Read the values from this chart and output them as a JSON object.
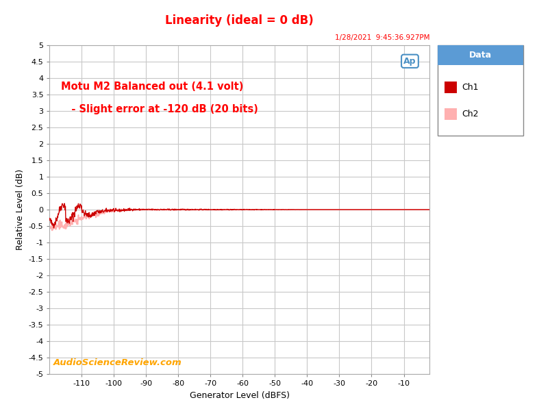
{
  "title": "Linearity (ideal = 0 dB)",
  "title_color": "#FF0000",
  "xlabel": "Generator Level (dBFS)",
  "ylabel": "Relative Level (dB)",
  "xlim": [
    -120,
    -2
  ],
  "ylim": [
    -5.0,
    5.0
  ],
  "yticks": [
    -5.0,
    -4.5,
    -4.0,
    -3.5,
    -3.0,
    -2.5,
    -2.0,
    -1.5,
    -1.0,
    -0.5,
    0.0,
    0.5,
    1.0,
    1.5,
    2.0,
    2.5,
    3.0,
    3.5,
    4.0,
    4.5,
    5.0
  ],
  "xticks": [
    -110,
    -100,
    -90,
    -80,
    -70,
    -60,
    -50,
    -40,
    -30,
    -20,
    -10
  ],
  "annotation_line1": "Motu M2 Balanced out (4.1 volt)",
  "annotation_line2": "   - Slight error at -120 dB (20 bits)",
  "annotation_color": "#FF0000",
  "watermark": "AudioScienceReview.com",
  "watermark_color": "#FFA500",
  "timestamp": "1/28/2021  9:45:36.927PM",
  "timestamp_color": "#FF0000",
  "ch1_color": "#CC0000",
  "ch2_color": "#FFB0B0",
  "legend_title": "Data",
  "legend_title_bg": "#5b9bd5",
  "bg_color": "#FFFFFF",
  "plot_bg_color": "#FFFFFF",
  "grid_color": "#C8C8C8",
  "figsize": [
    8.04,
    6.0
  ],
  "dpi": 100
}
